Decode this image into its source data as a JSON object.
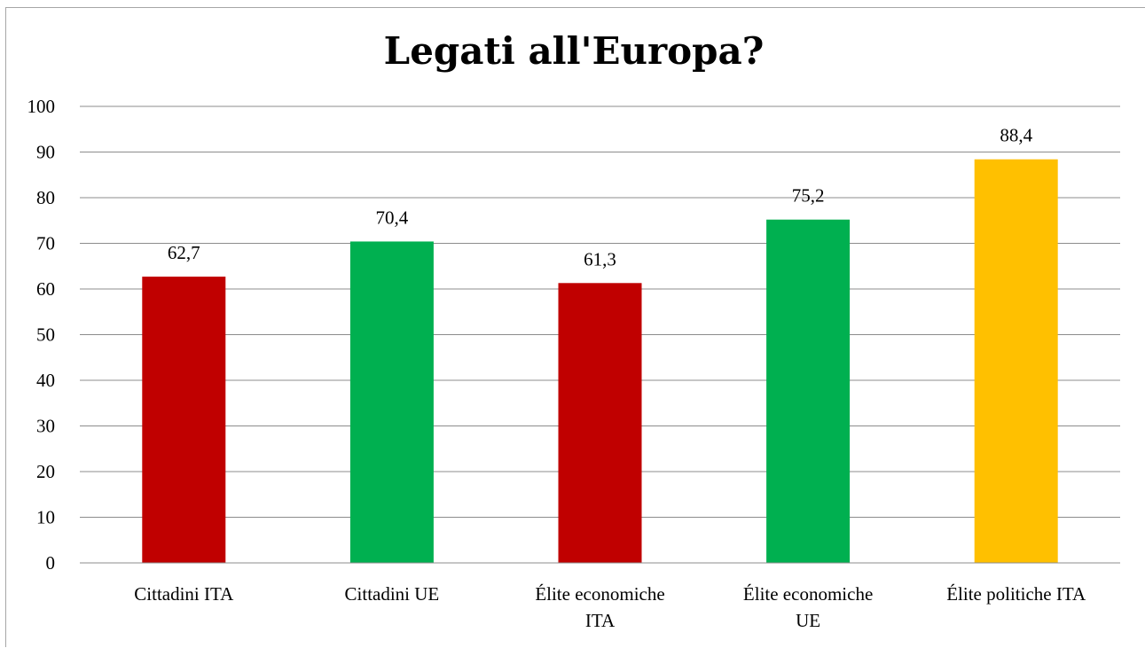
{
  "chart_data": {
    "type": "bar",
    "title": "Legati all'Europa?",
    "xlabel": "",
    "ylabel": "",
    "ylim": [
      0,
      100
    ],
    "yticks": [
      0,
      10,
      20,
      30,
      40,
      50,
      60,
      70,
      80,
      90,
      100
    ],
    "grid": true,
    "legend": "none",
    "categories": [
      [
        "Cittadini ITA"
      ],
      [
        "Cittadini UE"
      ],
      [
        "Élite economiche",
        "ITA"
      ],
      [
        "Élite economiche",
        "UE"
      ],
      [
        "Élite politiche ITA"
      ]
    ],
    "values": [
      62.7,
      70.4,
      61.3,
      75.2,
      88.4
    ],
    "value_labels": [
      "62,7",
      "70,4",
      "61,3",
      "75,2",
      "88,4"
    ],
    "bar_colors": [
      "#c00000",
      "#00b050",
      "#c00000",
      "#00b050",
      "#ffc000"
    ]
  }
}
